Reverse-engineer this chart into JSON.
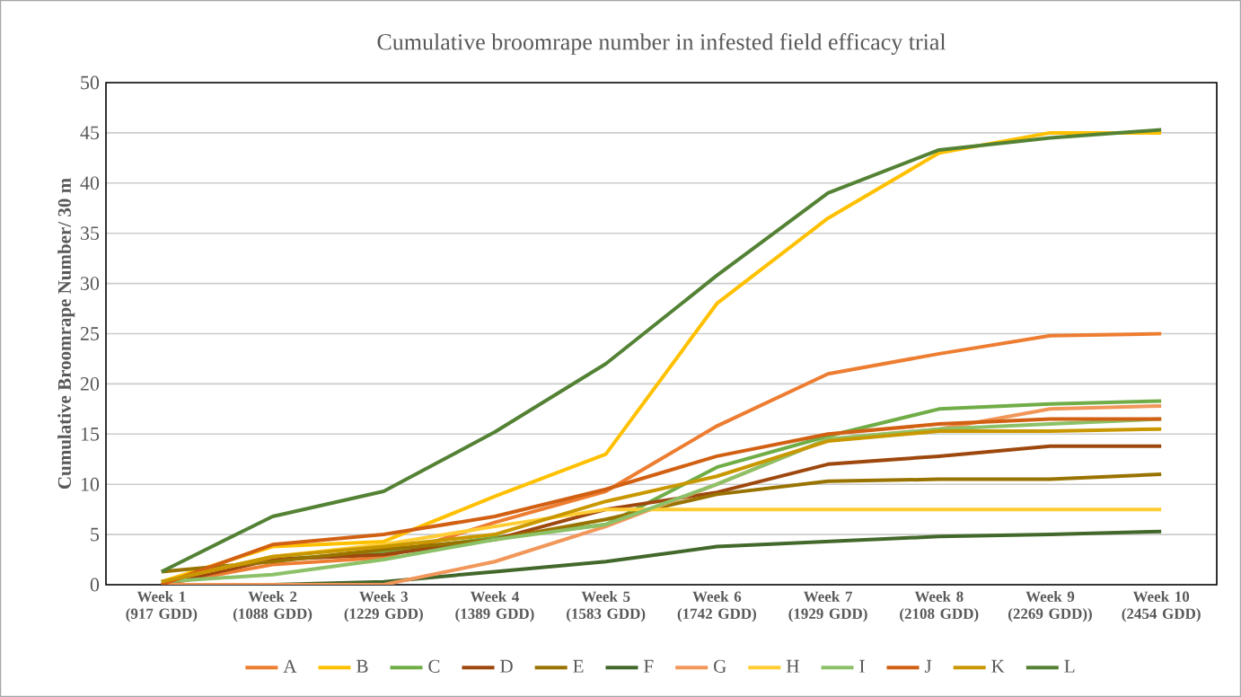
{
  "chart_data": {
    "type": "line",
    "title": "Cumulative broomrape number in infested field efficacy trial",
    "ylabel": "Cumulative Broomrape Number/ 30 m",
    "categories": [
      "Week 1 (917 GDD)",
      "Week 2 (1088 GDD)",
      "Week 3 (1229 GDD)",
      "Week 4 (1389 GDD)",
      "Week 5 (1583 GDD)",
      "Week 6 (1742 GDD)",
      "Week 7 (1929 GDD)",
      "Week 8 (2108 GDD)",
      "Week 9 (2269 GDD))",
      "Week 10 (2454 GDD)"
    ],
    "ylim": [
      0,
      50
    ],
    "yticks": [
      0,
      5,
      10,
      15,
      20,
      25,
      30,
      35,
      40,
      45,
      50
    ],
    "grid": "y",
    "legend": "bottom",
    "marker": "none",
    "line_style": "solid",
    "series": [
      {
        "name": "A",
        "color": "#ed7d31",
        "values": [
          0,
          2,
          2.7,
          6.2,
          9.3,
          15.8,
          21,
          23,
          24.8,
          25
        ]
      },
      {
        "name": "B",
        "color": "#ffc000",
        "values": [
          0.3,
          3.8,
          4.3,
          8.8,
          13,
          28,
          36.5,
          43,
          45,
          45
        ]
      },
      {
        "name": "C",
        "color": "#70ad47",
        "values": [
          0.3,
          2.5,
          3.2,
          4.7,
          6,
          11.7,
          14.8,
          17.5,
          18,
          18.3
        ]
      },
      {
        "name": "D",
        "color": "#9e480e",
        "values": [
          0,
          2.5,
          3,
          4.5,
          7.5,
          9.2,
          12,
          12.8,
          13.8,
          13.8
        ]
      },
      {
        "name": "E",
        "color": "#997300",
        "values": [
          1.3,
          2.3,
          3.5,
          4.5,
          6.5,
          9,
          10.3,
          10.5,
          10.5,
          11
        ]
      },
      {
        "name": "F",
        "color": "#43682b",
        "values": [
          0,
          0,
          0.3,
          1.3,
          2.3,
          3.8,
          4.3,
          4.8,
          5,
          5.3
        ]
      },
      {
        "name": "G",
        "color": "#f1975a",
        "values": [
          0,
          0,
          0,
          2.3,
          5.8,
          10,
          14.5,
          15.5,
          17.5,
          17.8
        ]
      },
      {
        "name": "H",
        "color": "#ffcd33",
        "values": [
          0.3,
          2.8,
          4,
          5.8,
          7.5,
          7.5,
          7.5,
          7.5,
          7.5,
          7.5
        ]
      },
      {
        "name": "I",
        "color": "#8cc168",
        "values": [
          0.3,
          1,
          2.5,
          4.5,
          6,
          10,
          14.5,
          15.5,
          16,
          16.5
        ]
      },
      {
        "name": "J",
        "color": "#d26012",
        "values": [
          0,
          4,
          5,
          6.8,
          9.5,
          12.8,
          15,
          16,
          16.5,
          16.5
        ]
      },
      {
        "name": "K",
        "color": "#c99800",
        "values": [
          0.3,
          2.8,
          3.8,
          5,
          8.3,
          10.8,
          14.3,
          15.3,
          15.3,
          15.5
        ]
      },
      {
        "name": "L",
        "color": "#548235",
        "values": [
          1.3,
          6.8,
          9.3,
          15.2,
          22,
          30.8,
          39,
          43.3,
          44.5,
          45.3
        ]
      }
    ]
  }
}
